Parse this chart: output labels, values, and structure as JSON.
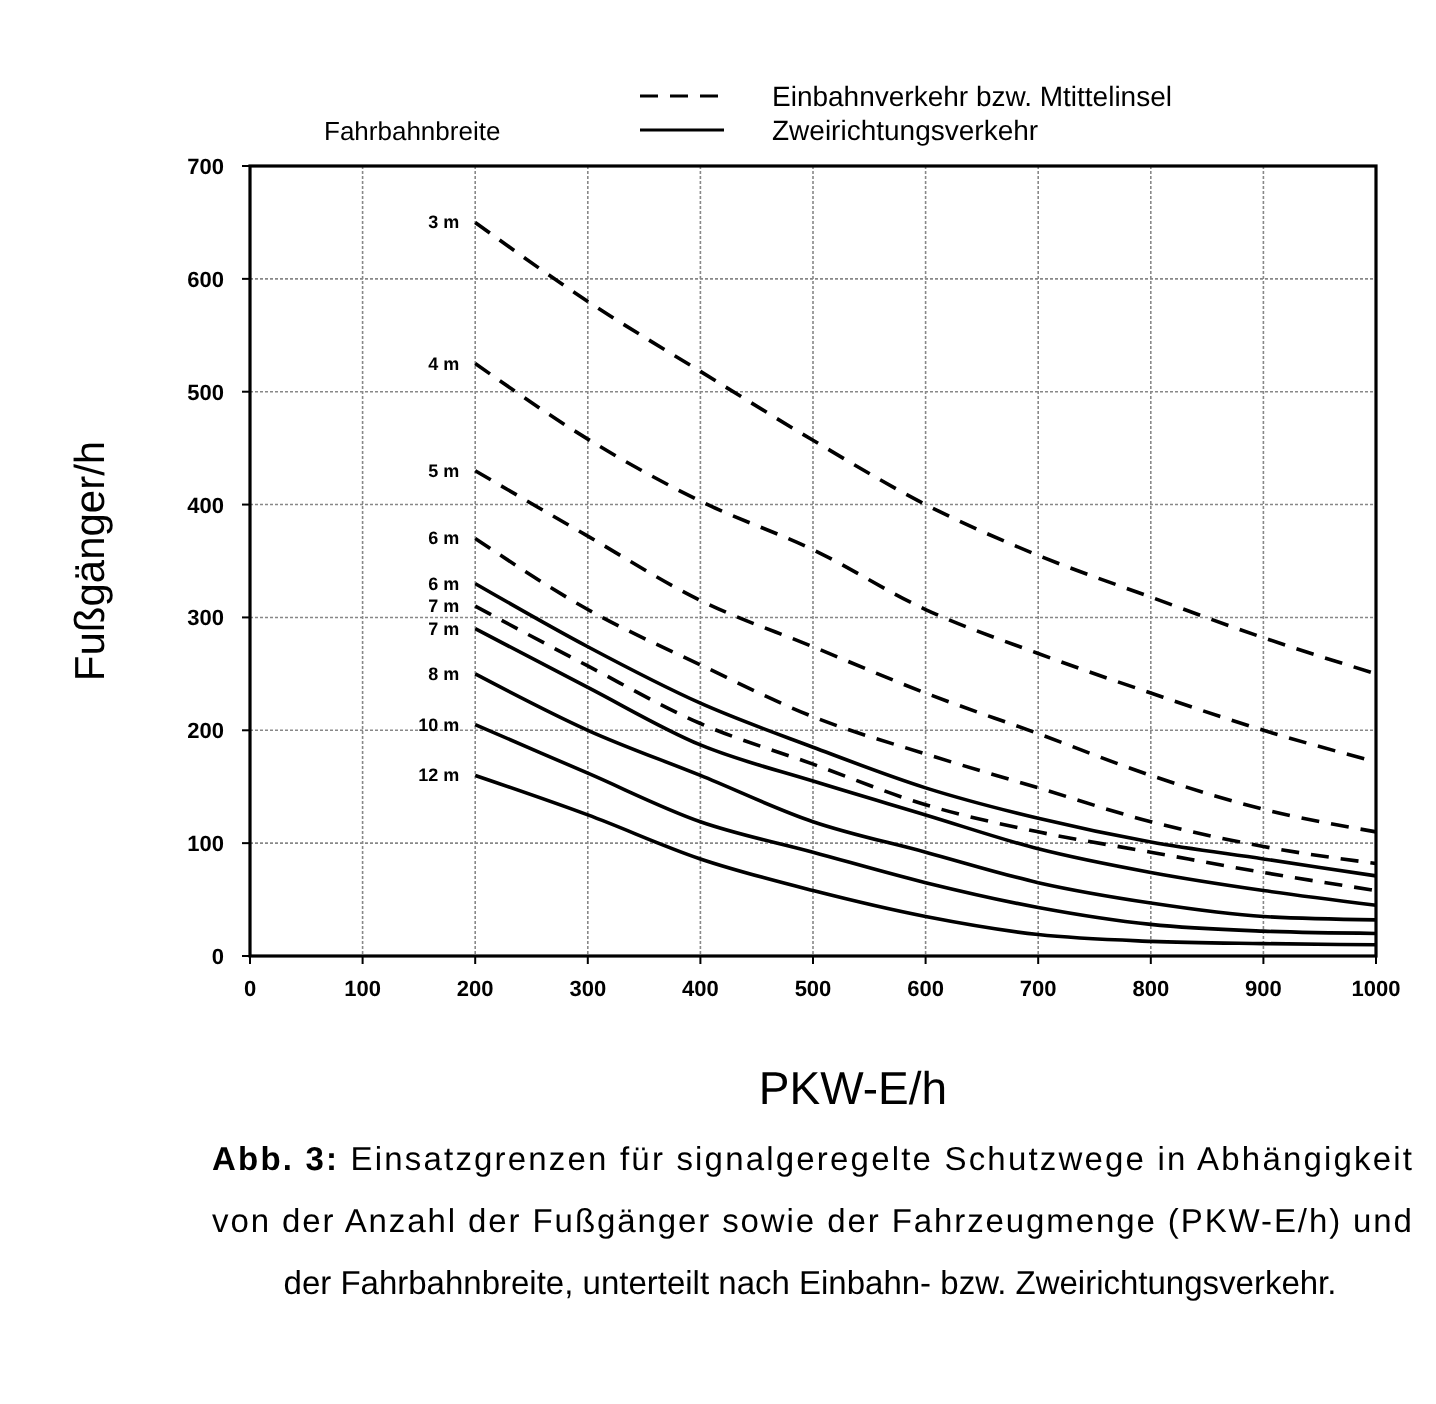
{
  "chart_data": {
    "type": "line",
    "xlabel": "PKW-E/h",
    "ylabel": "Fußgänger/h",
    "legend_title": "Fahrbahnbreite",
    "x": [
      200,
      300,
      400,
      500,
      600,
      700,
      800,
      900,
      1000
    ],
    "xlim": [
      0,
      1000
    ],
    "xticks": [
      0,
      100,
      200,
      300,
      400,
      500,
      600,
      700,
      800,
      900,
      1000
    ],
    "ylim": [
      0,
      700
    ],
    "yticks": [
      0,
      100,
      200,
      300,
      400,
      500,
      600,
      700
    ],
    "grid": true,
    "legend": "top",
    "marker": "none",
    "series": [
      {
        "name": "3 m",
        "color": "#000000",
        "line_style": "dashed",
        "values": [
          650,
          580,
          518,
          457,
          400,
          355,
          318,
          282,
          250
        ]
      },
      {
        "name": "4 m",
        "color": "#000000",
        "line_style": "dashed",
        "values": [
          525,
          458,
          403,
          360,
          307,
          268,
          233,
          200,
          172
        ]
      },
      {
        "name": "5 m",
        "color": "#000000",
        "line_style": "dashed",
        "values": [
          430,
          372,
          315,
          274,
          233,
          197,
          160,
          130,
          110
        ]
      },
      {
        "name": "6 m",
        "color": "#000000",
        "line_style": "dashed",
        "values": [
          370,
          307,
          258,
          212,
          179,
          149,
          119,
          97,
          82
        ]
      },
      {
        "name": "6 m",
        "color": "#000000",
        "line_style": "solid",
        "values": [
          330,
          274,
          224,
          185,
          149,
          122,
          101,
          86,
          71
        ]
      },
      {
        "name": "7 m",
        "color": "#000000",
        "line_style": "dashed",
        "values": [
          310,
          257,
          206,
          170,
          134,
          110,
          92,
          74,
          58
        ]
      },
      {
        "name": "7 m",
        "color": "#000000",
        "line_style": "solid",
        "values": [
          290,
          238,
          187,
          155,
          125,
          95,
          74,
          58,
          45
        ]
      },
      {
        "name": "8 m",
        "color": "#000000",
        "line_style": "solid",
        "values": [
          250,
          200,
          160,
          119,
          92,
          65,
          47,
          35,
          32
        ]
      },
      {
        "name": "10 m",
        "color": "#000000",
        "line_style": "solid",
        "values": [
          205,
          162,
          119,
          92,
          65,
          43,
          28,
          22,
          20
        ]
      },
      {
        "name": "12 m",
        "color": "#000000",
        "line_style": "solid",
        "values": [
          160,
          125,
          86,
          58,
          35,
          19,
          13,
          11,
          10
        ]
      }
    ],
    "annotations": [
      "Einbahnverkehr bzw. Mtittelinsel",
      "Zweirichtungsverkehr",
      "Abb. 3: Einsatzgrenzen für signalgeregelte Schutzwege in Abhängigkeit von der Anzahl der Fußgänger sowie der Fahrzeugmenge (PKW-E/h) und der Fahrbahnbreite, unterteilt nach Einbahn- bzw. Zweirichtungsverkehr."
    ]
  }
}
